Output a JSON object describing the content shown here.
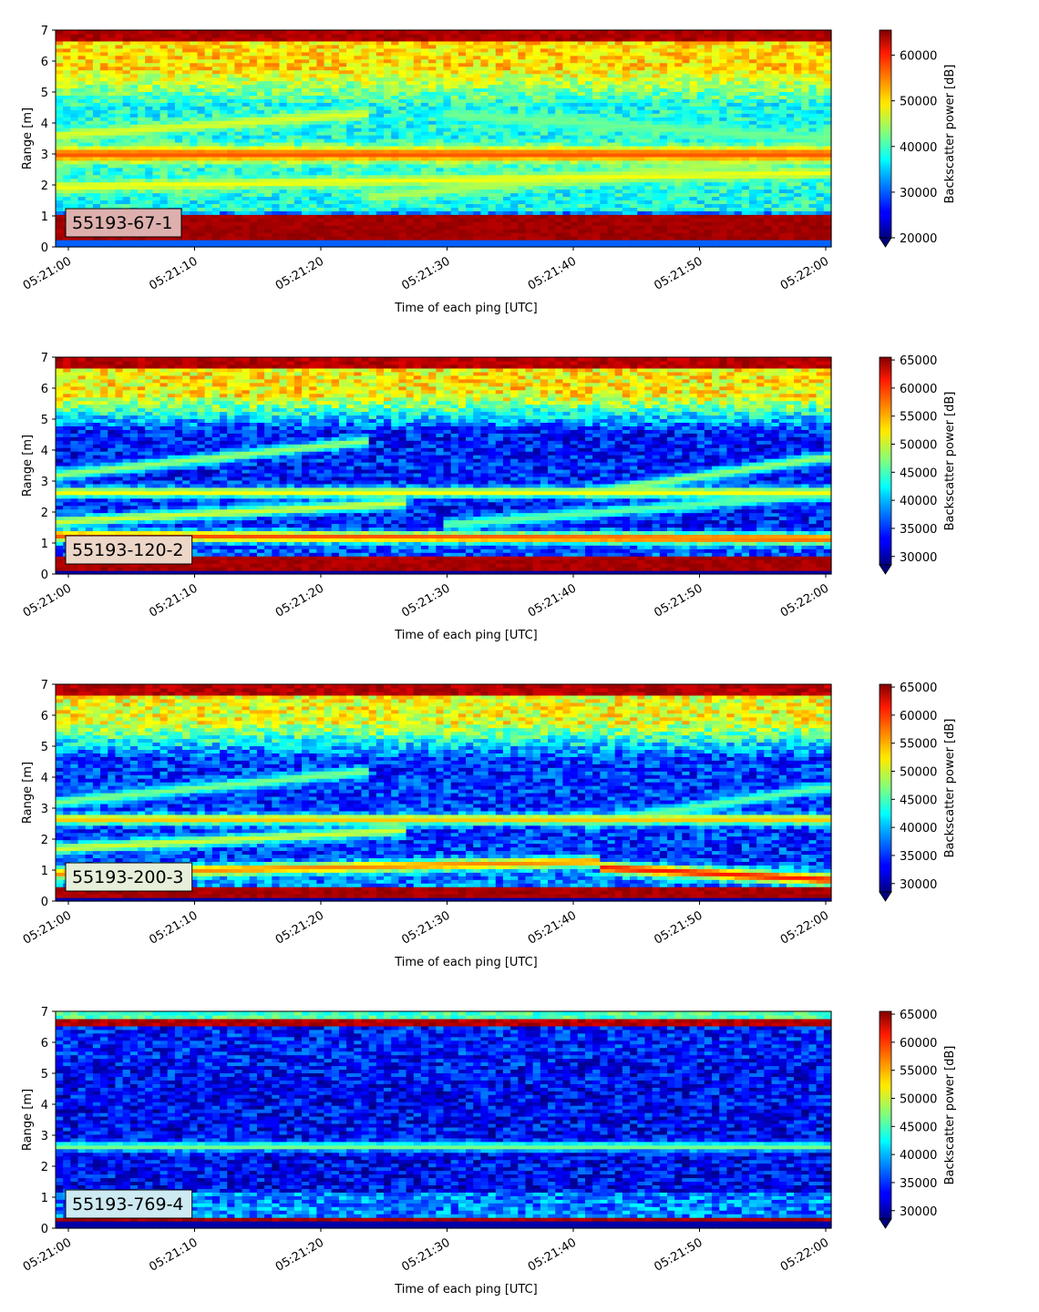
{
  "chart_data": [
    {
      "type": "heatmap",
      "sample_label": "55193-67-1",
      "xlabel": "Time of each ping [UTC]",
      "ylabel": "Range [m]",
      "x_ticks": [
        "05:21:00",
        "05:21:10",
        "05:21:20",
        "05:21:30",
        "05:21:40",
        "05:21:50",
        "05:22:00"
      ],
      "y_ticks": [
        "0",
        "1",
        "2",
        "3",
        "4",
        "5",
        "6",
        "7"
      ],
      "ylim": [
        0,
        7
      ],
      "colorbar": {
        "label": "Backscatter power [dB]",
        "ticks": [
          "20000",
          "30000",
          "40000",
          "50000",
          "60000"
        ],
        "range": [
          20000,
          65500
        ],
        "colormap": "jet",
        "extend": "min"
      },
      "tag_box_color": "#ddb0ae",
      "features": {
        "bottom_band": {
          "from": 0.2,
          "to": 1.1,
          "value": 65000
        },
        "top_band": {
          "from": 6.6,
          "to": 7.0,
          "value": 65000
        },
        "flat_layers": [
          {
            "range": 3.0,
            "value": 56000,
            "width": 0.18
          }
        ],
        "sloped_layers": [
          {
            "start": [
              0.0,
              3.6
            ],
            "end": [
              0.4,
              4.3
            ],
            "value": 47000
          },
          {
            "start": [
              0.5,
              4.3
            ],
            "end": [
              1.0,
              3.5
            ],
            "value": 42000
          },
          {
            "start": [
              0.0,
              1.95
            ],
            "end": [
              1.0,
              2.4
            ],
            "value": 48000
          },
          {
            "start": [
              0.4,
              1.6
            ],
            "end": [
              1.0,
              3.0
            ],
            "value": 45000
          }
        ],
        "background": {
          "low": 32000,
          "mid": 38000,
          "upper": 50000
        }
      }
    },
    {
      "type": "heatmap",
      "sample_label": "55193-120-2",
      "xlabel": "Time of each ping [UTC]",
      "ylabel": "Range [m]",
      "x_ticks": [
        "05:21:00",
        "05:21:10",
        "05:21:20",
        "05:21:30",
        "05:21:40",
        "05:21:50",
        "05:22:00"
      ],
      "y_ticks": [
        "0",
        "1",
        "2",
        "3",
        "4",
        "5",
        "6",
        "7"
      ],
      "ylim": [
        0,
        7
      ],
      "colorbar": {
        "label": "Backscatter power [dB]",
        "ticks": [
          "30000",
          "35000",
          "40000",
          "45000",
          "50000",
          "55000",
          "60000",
          "65000"
        ],
        "range": [
          28500,
          65500
        ],
        "colormap": "jet",
        "extend": "min"
      },
      "tag_box_color": "#ecd6c8",
      "features": {
        "bottom_band": {
          "from": 0.15,
          "to": 0.6,
          "value": 65000
        },
        "top_band": {
          "from": 6.6,
          "to": 7.0,
          "value": 65000
        },
        "flat_layers": [
          {
            "range": 2.65,
            "value": 52000,
            "width": 0.12
          }
        ],
        "sloped_layers": [
          {
            "start": [
              0.0,
              3.2
            ],
            "end": [
              0.4,
              4.3
            ],
            "value": 48000
          },
          {
            "start": [
              0.0,
              1.7
            ],
            "end": [
              0.45,
              2.3
            ],
            "value": 50000
          },
          {
            "start": [
              0.0,
              1.25
            ],
            "end": [
              1.0,
              1.15
            ],
            "value": 58000
          },
          {
            "start": [
              0.68,
              2.6
            ],
            "end": [
              1.0,
              3.8
            ],
            "value": 48000
          },
          {
            "start": [
              0.5,
              1.6
            ],
            "end": [
              1.0,
              2.6
            ],
            "value": 46000
          }
        ],
        "background": {
          "low": 36000,
          "mid": 34000,
          "upper": 52000
        }
      }
    },
    {
      "type": "heatmap",
      "sample_label": "55193-200-3",
      "xlabel": "Time of each ping [UTC]",
      "ylabel": "Range [m]",
      "x_ticks": [
        "05:21:00",
        "05:21:10",
        "05:21:20",
        "05:21:30",
        "05:21:40",
        "05:21:50",
        "05:22:00"
      ],
      "y_ticks": [
        "0",
        "1",
        "2",
        "3",
        "4",
        "5",
        "6",
        "7"
      ],
      "ylim": [
        0,
        7
      ],
      "colorbar": {
        "label": "Backscatter power [dB]",
        "ticks": [
          "30000",
          "35000",
          "40000",
          "45000",
          "50000",
          "55000",
          "60000",
          "65000"
        ],
        "range": [
          28500,
          65500
        ],
        "colormap": "jet",
        "extend": "min"
      },
      "tag_box_color": "#e6efd9",
      "features": {
        "bottom_band": {
          "from": 0.15,
          "to": 0.45,
          "value": 65000
        },
        "top_band": {
          "from": 6.6,
          "to": 7.0,
          "value": 65000
        },
        "flat_layers": [
          {
            "range": 2.65,
            "value": 54000,
            "width": 0.12
          }
        ],
        "sloped_layers": [
          {
            "start": [
              0.0,
              3.2
            ],
            "end": [
              0.4,
              4.2
            ],
            "value": 47000
          },
          {
            "start": [
              0.0,
              1.7
            ],
            "end": [
              0.45,
              2.3
            ],
            "value": 50000
          },
          {
            "start": [
              0.0,
              0.9
            ],
            "end": [
              0.7,
              1.3
            ],
            "value": 56000
          },
          {
            "start": [
              0.7,
              1.1
            ],
            "end": [
              1.0,
              0.7
            ],
            "value": 60000
          },
          {
            "start": [
              0.68,
              2.5
            ],
            "end": [
              1.0,
              3.7
            ],
            "value": 46000
          }
        ],
        "background": {
          "low": 38000,
          "mid": 35000,
          "upper": 51000
        }
      }
    },
    {
      "type": "heatmap",
      "sample_label": "55193-769-4",
      "xlabel": "Time of each ping [UTC]",
      "ylabel": "Range [m]",
      "x_ticks": [
        "05:21:00",
        "05:21:10",
        "05:21:20",
        "05:21:30",
        "05:21:40",
        "05:21:50",
        "05:22:00"
      ],
      "y_ticks": [
        "0",
        "1",
        "2",
        "3",
        "4",
        "5",
        "6",
        "7"
      ],
      "ylim": [
        0,
        7
      ],
      "colorbar": {
        "label": "Backscatter power [dB]",
        "ticks": [
          "30000",
          "35000",
          "40000",
          "45000",
          "50000",
          "55000",
          "60000",
          "65000"
        ],
        "range": [
          28500,
          65500
        ],
        "colormap": "jet",
        "extend": "min"
      },
      "tag_box_color": "#cde9f2",
      "features": {
        "bottom_band": {
          "from": 0.2,
          "to": 0.35,
          "value": 65000
        },
        "top_band": {
          "from": 6.5,
          "to": 6.75,
          "value": 65000
        },
        "top_cap": {
          "from": 6.75,
          "to": 7.0,
          "value": 45000
        },
        "flat_layers": [
          {
            "range": 2.65,
            "value": 47000,
            "width": 0.1
          }
        ],
        "sloped_layers": [],
        "background": {
          "low": 38000,
          "mid": 33000,
          "upper": 34000
        }
      }
    }
  ]
}
